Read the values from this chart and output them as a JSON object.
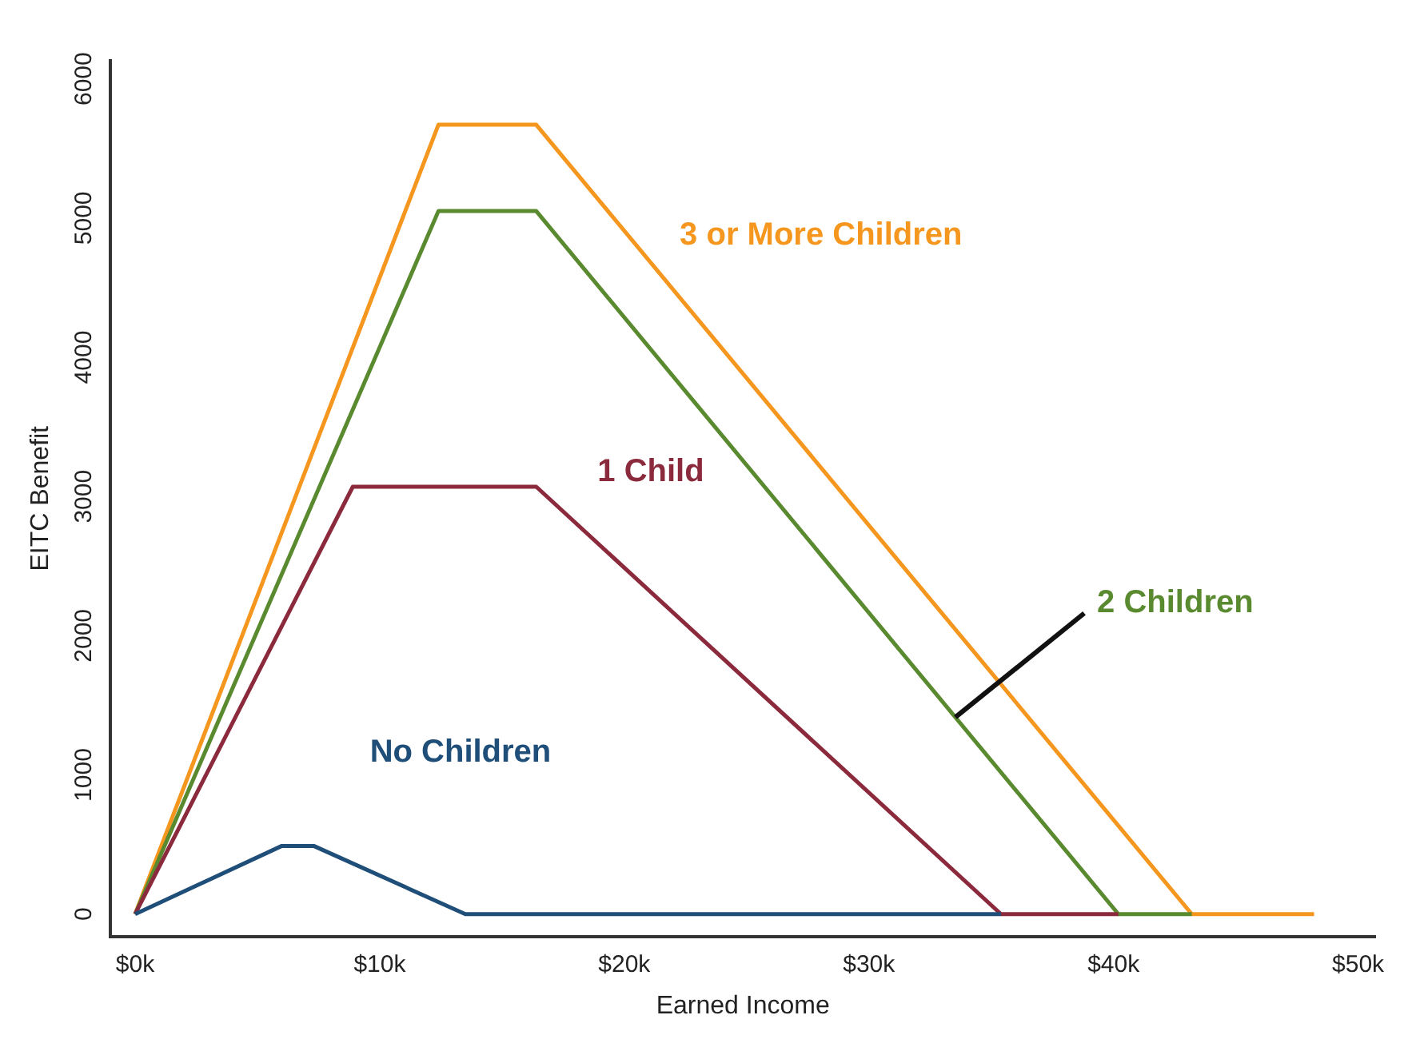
{
  "chart_data": {
    "type": "line",
    "xlabel": "Earned Income",
    "ylabel": "EITC Benefit",
    "xlim": [
      -1,
      50.7
    ],
    "ylim": [
      -160,
      6130
    ],
    "xticks": [
      {
        "value": 0,
        "label": "$0k"
      },
      {
        "value": 10,
        "label": "$10k"
      },
      {
        "value": 20,
        "label": "$20k"
      },
      {
        "value": 30,
        "label": "$30k"
      },
      {
        "value": 40,
        "label": "$40k"
      },
      {
        "value": 50,
        "label": "$50k"
      }
    ],
    "yticks": [
      0,
      1000,
      2000,
      3000,
      4000,
      5000,
      6000
    ],
    "grid": false,
    "legend": false,
    "marker": "none",
    "line_style": "solid",
    "series": [
      {
        "name": "No Children",
        "color": "#1f4e79",
        "x": [
          0,
          6.0,
          7.3,
          13.5,
          35.4
        ],
        "values": [
          0,
          490,
          490,
          0,
          0
        ]
      },
      {
        "name": "1 Child",
        "color": "#8b2a3c",
        "x": [
          0,
          8.9,
          16.4,
          35.4,
          40.2
        ],
        "values": [
          0,
          3070,
          3070,
          0,
          0
        ]
      },
      {
        "name": "2 Children",
        "color": "#5a8a2f",
        "x": [
          0,
          12.4,
          16.4,
          40.2,
          43.2
        ],
        "values": [
          0,
          5050,
          5050,
          0,
          0
        ]
      },
      {
        "name": "3 or More Children",
        "color": "#f5961e",
        "x": [
          0,
          12.4,
          16.4,
          43.2,
          48.2
        ],
        "values": [
          0,
          5670,
          5670,
          0,
          0
        ]
      }
    ]
  }
}
